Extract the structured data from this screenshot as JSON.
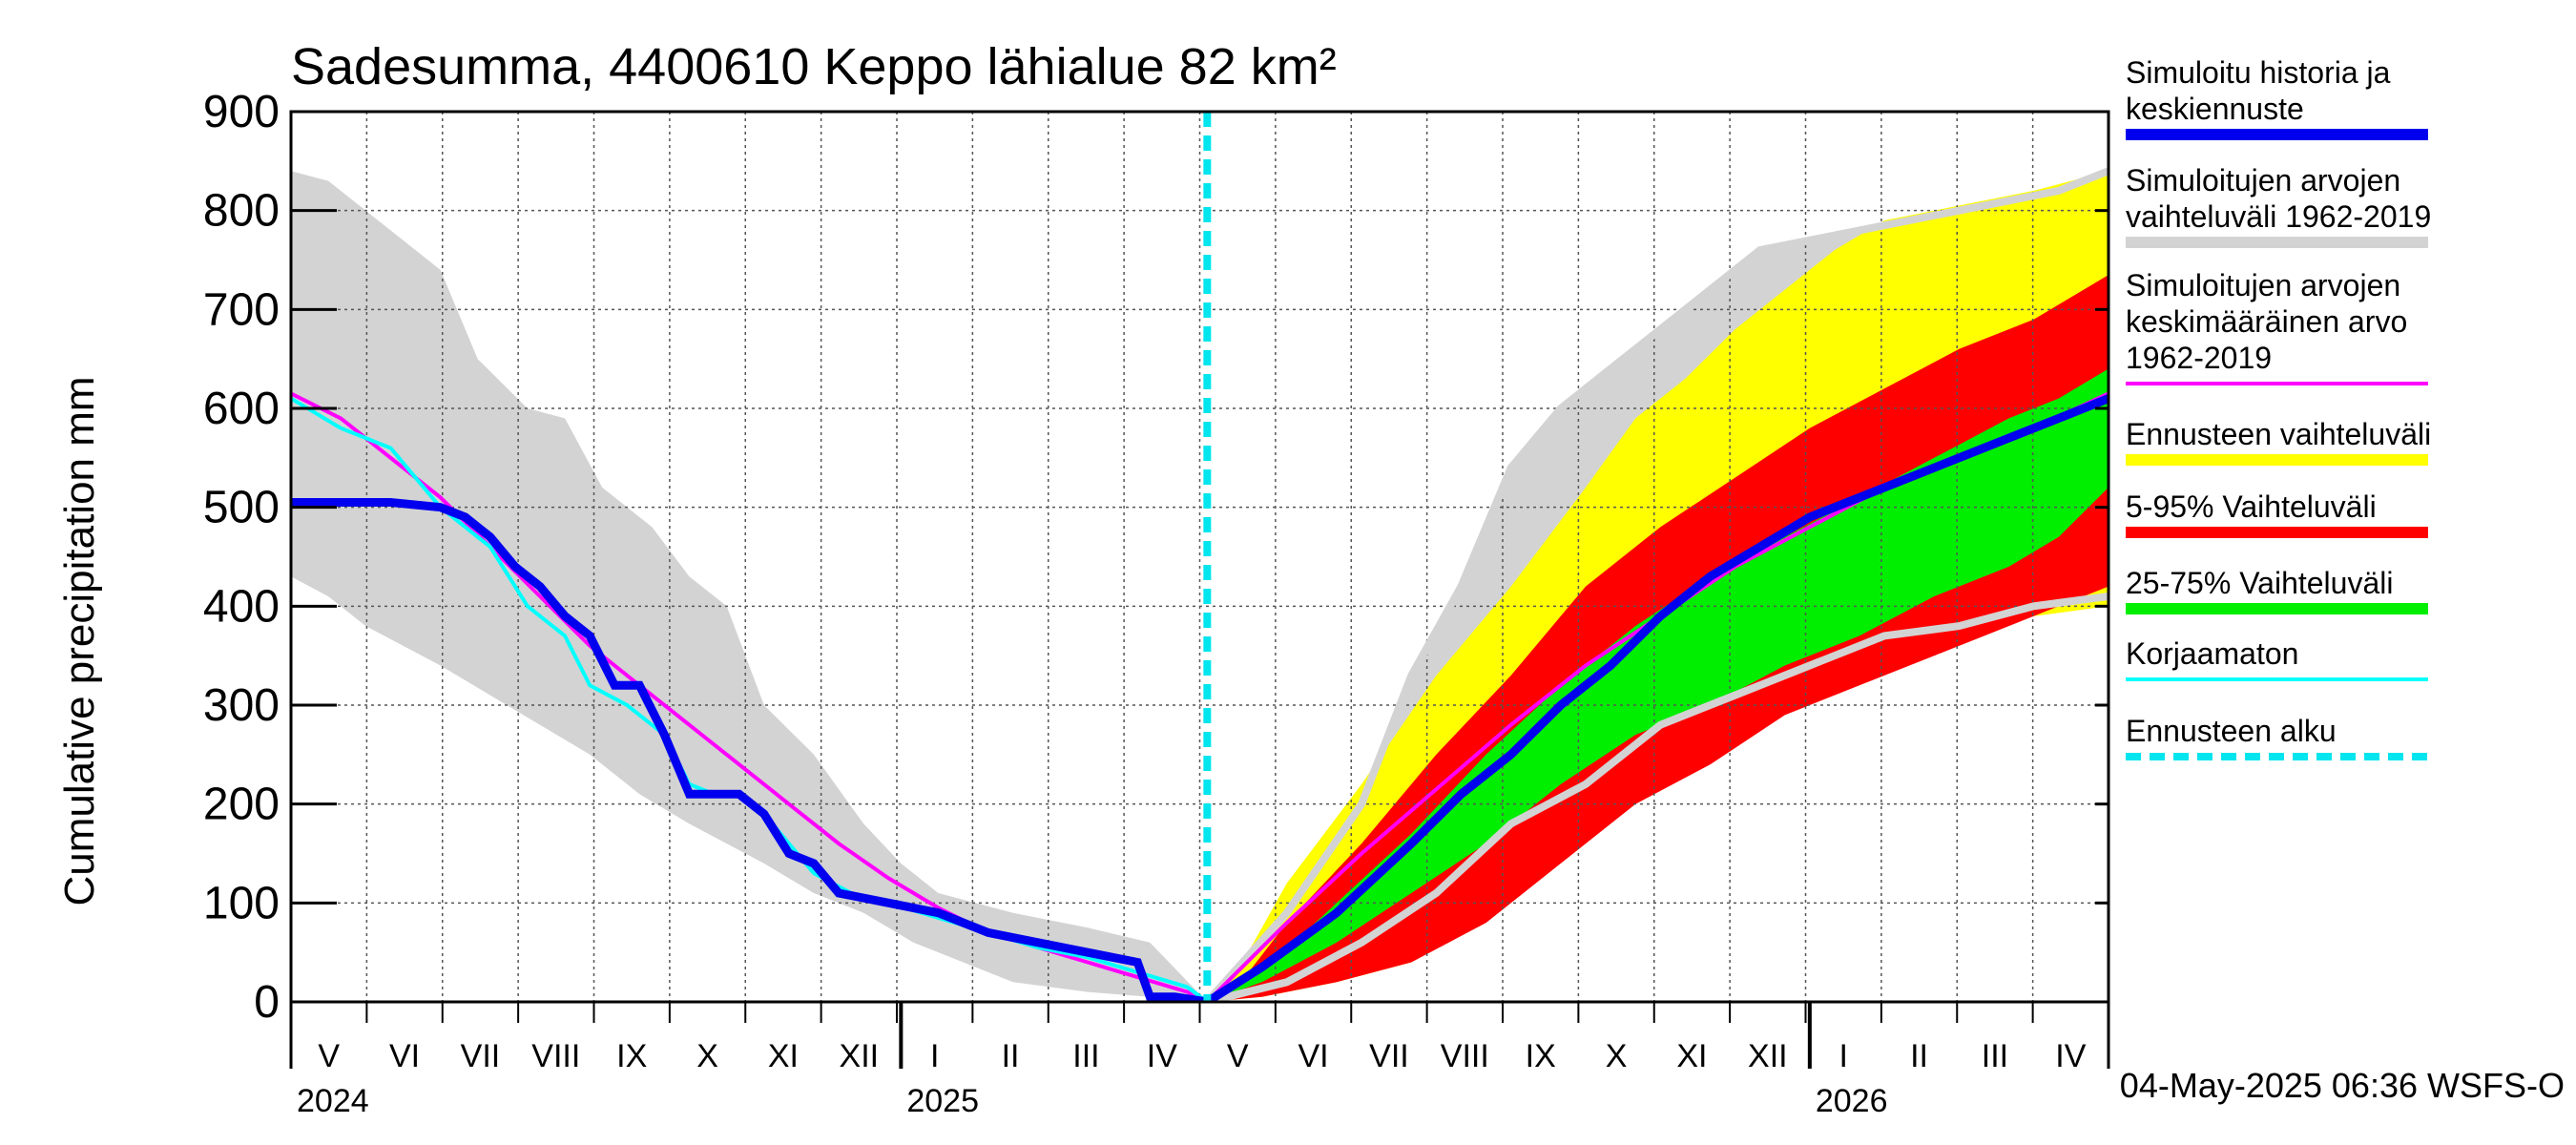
{
  "chart_data": {
    "type": "area",
    "title": "Sadesumma, 4400610 Keppo lähialue 82 km²",
    "ylabel": "Cumulative precipitation   mm",
    "xlabel": "",
    "ylim": [
      0,
      900
    ],
    "y_ticks": [
      0,
      100,
      200,
      300,
      400,
      500,
      600,
      700,
      800,
      900
    ],
    "x_domain_days": [
      0,
      730
    ],
    "forecast_start_day": 368,
    "months": [
      "V",
      "VI",
      "VII",
      "VIII",
      "IX",
      "X",
      "XI",
      "XII",
      "I",
      "II",
      "III",
      "IV",
      "V",
      "VI",
      "VII",
      "VIII",
      "IX",
      "X",
      "XI",
      "XII",
      "I",
      "II",
      "III",
      "IV"
    ],
    "years": [
      {
        "label": "2024",
        "day": 0
      },
      {
        "label": "2025",
        "day": 245
      },
      {
        "label": "2026",
        "day": 610
      }
    ],
    "timestamp": "04-May-2025 06:36 WSFS-O",
    "legend": [
      {
        "label": "Simuloitu historia ja\nkeskiennuste",
        "color": "#0000ee",
        "style": "solid"
      },
      {
        "label": "Simuloitujen arvojen\nvaihteluväli 1962-2019",
        "color": "#d3d3d3",
        "style": "solid"
      },
      {
        "label": "Simuloitujen arvojen\nkeskimääräinen arvo\n   1962-2019",
        "color": "#ff00ff",
        "style": "thin"
      },
      {
        "label": "Ennusteen vaihteluväli",
        "color": "#ffff00",
        "style": "solid"
      },
      {
        "label": "5-95% Vaihteluväli",
        "color": "#ff0000",
        "style": "solid"
      },
      {
        "label": "25-75% Vaihteluväli",
        "color": "#00ee00",
        "style": "solid"
      },
      {
        "label": "Korjaamaton",
        "color": "#00ffff",
        "style": "thin"
      },
      {
        "label": "Ennusteen alku",
        "color": "#00e5ee",
        "style": "dashed"
      }
    ],
    "series": [
      {
        "name": "hist_range_upper",
        "x": [
          0,
          15,
          30,
          50,
          60,
          75,
          95,
          110,
          125,
          145,
          160,
          175,
          190,
          210,
          230,
          245,
          260,
          290,
          320,
          345,
          368
        ],
        "values": [
          840,
          830,
          800,
          760,
          740,
          650,
          600,
          590,
          520,
          480,
          430,
          400,
          300,
          250,
          180,
          140,
          110,
          90,
          75,
          60,
          0
        ]
      },
      {
        "name": "hist_range_lower",
        "x": [
          0,
          15,
          30,
          45,
          60,
          80,
          100,
          120,
          140,
          160,
          175,
          190,
          210,
          230,
          250,
          270,
          290,
          320,
          345,
          368
        ],
        "values": [
          430,
          410,
          380,
          360,
          340,
          310,
          280,
          250,
          210,
          180,
          160,
          140,
          110,
          90,
          60,
          40,
          20,
          10,
          5,
          0
        ]
      },
      {
        "name": "mean",
        "x": [
          0,
          20,
          40,
          60,
          80,
          100,
          120,
          140,
          160,
          180,
          200,
          220,
          240,
          260,
          280,
          300,
          320,
          340,
          360,
          368,
          400,
          430,
          460,
          490,
          520,
          550,
          580,
          610,
          640,
          670,
          700,
          730
        ],
        "values": [
          615,
          590,
          550,
          510,
          460,
          410,
          360,
          320,
          280,
          240,
          200,
          160,
          125,
          95,
          70,
          55,
          40,
          25,
          10,
          0,
          80,
          150,
          215,
          280,
          340,
          390,
          440,
          480,
          520,
          550,
          580,
          615
        ]
      },
      {
        "name": "uncorrected",
        "x": [
          0,
          20,
          40,
          60,
          80,
          95,
          110,
          120,
          135,
          150,
          160,
          170,
          180,
          190,
          200,
          210,
          225,
          240,
          260,
          280,
          300,
          320,
          340,
          360,
          368
        ],
        "values": [
          610,
          580,
          560,
          500,
          460,
          400,
          370,
          320,
          300,
          270,
          220,
          210,
          210,
          190,
          160,
          130,
          110,
          100,
          85,
          70,
          55,
          45,
          30,
          15,
          0
        ]
      },
      {
        "name": "simulated",
        "x": [
          0,
          20,
          40,
          60,
          70,
          80,
          90,
          100,
          110,
          120,
          130,
          140,
          150,
          160,
          170,
          180,
          190,
          200,
          210,
          220,
          240,
          260,
          280,
          300,
          320,
          340,
          345,
          355,
          368
        ],
        "values": [
          505,
          505,
          505,
          500,
          490,
          470,
          440,
          420,
          390,
          370,
          320,
          320,
          270,
          210,
          210,
          210,
          190,
          150,
          140,
          110,
          100,
          90,
          70,
          60,
          50,
          40,
          5,
          5,
          0
        ]
      },
      {
        "name": "fc_max",
        "x": [
          368,
          380,
          400,
          430,
          460,
          490,
          520,
          540,
          560,
          580,
          600,
          620,
          640,
          660,
          680,
          700,
          715,
          730
        ],
        "values": [
          0,
          30,
          120,
          220,
          330,
          420,
          520,
          590,
          630,
          680,
          720,
          760,
          790,
          800,
          810,
          820,
          830,
          840
        ]
      },
      {
        "name": "fc_min",
        "x": [
          368,
          390,
          420,
          450,
          470,
          490,
          510,
          530,
          550,
          580,
          610,
          640,
          670,
          700,
          730
        ],
        "values": [
          0,
          5,
          20,
          40,
          90,
          160,
          200,
          240,
          280,
          320,
          340,
          360,
          380,
          390,
          400
        ]
      },
      {
        "name": "p95",
        "x": [
          368,
          380,
          400,
          430,
          460,
          490,
          520,
          550,
          580,
          610,
          640,
          670,
          700,
          730
        ],
        "values": [
          0,
          15,
          80,
          160,
          250,
          330,
          420,
          480,
          530,
          580,
          620,
          660,
          690,
          735
        ]
      },
      {
        "name": "p5",
        "x": [
          368,
          390,
          420,
          450,
          480,
          510,
          540,
          570,
          600,
          630,
          660,
          690,
          710,
          730
        ],
        "values": [
          0,
          5,
          20,
          40,
          80,
          140,
          200,
          240,
          290,
          320,
          350,
          380,
          400,
          420
        ]
      },
      {
        "name": "p75",
        "x": [
          368,
          390,
          420,
          450,
          480,
          510,
          540,
          570,
          600,
          630,
          660,
          690,
          710,
          730
        ],
        "values": [
          0,
          30,
          100,
          170,
          250,
          320,
          380,
          430,
          470,
          510,
          550,
          590,
          610,
          640
        ]
      },
      {
        "name": "p25",
        "x": [
          368,
          390,
          420,
          450,
          480,
          510,
          540,
          570,
          600,
          630,
          660,
          690,
          710,
          730
        ],
        "values": [
          0,
          20,
          60,
          110,
          160,
          220,
          270,
          300,
          340,
          370,
          410,
          440,
          470,
          520
        ]
      },
      {
        "name": "median",
        "x": [
          368,
          390,
          420,
          450,
          470,
          490,
          510,
          530,
          550,
          570,
          590,
          610,
          630,
          650,
          670,
          690,
          710,
          730
        ],
        "values": [
          0,
          35,
          90,
          160,
          210,
          250,
          300,
          340,
          390,
          430,
          460,
          490,
          510,
          530,
          550,
          570,
          590,
          610
        ]
      },
      {
        "name": "hist_upper_forecast",
        "x": [
          368,
          400,
          430,
          450,
          470,
          490,
          510,
          530,
          550,
          570,
          590,
          610,
          630,
          650,
          670,
          690,
          710,
          730
        ],
        "values": [
          0,
          90,
          200,
          330,
          420,
          540,
          600,
          640,
          680,
          720,
          760,
          770,
          780,
          790,
          800,
          810,
          820,
          840
        ]
      },
      {
        "name": "hist_lower_forecast",
        "x": [
          368,
          400,
          430,
          460,
          490,
          520,
          550,
          580,
          610,
          640,
          670,
          700,
          730
        ],
        "values": [
          0,
          20,
          60,
          110,
          180,
          220,
          280,
          310,
          340,
          370,
          380,
          400,
          410
        ]
      }
    ]
  }
}
